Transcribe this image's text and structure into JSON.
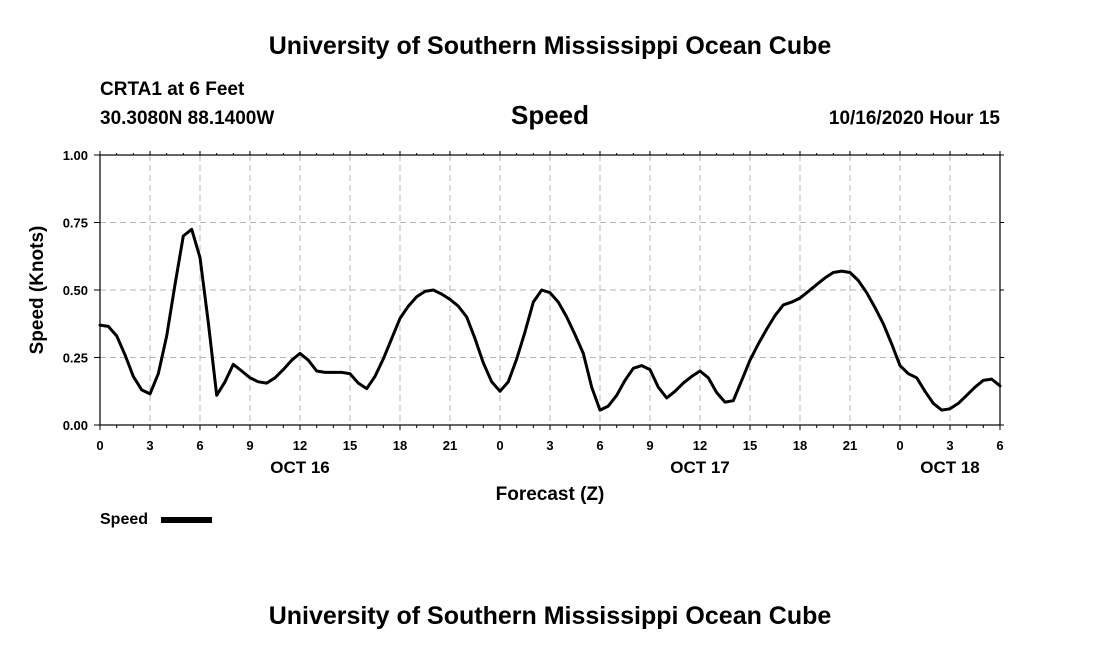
{
  "header": {
    "title_top": "University of Southern Mississippi Ocean Cube",
    "station": "CRTA1 at 6 Feet",
    "location": "30.3080N 88.1400W",
    "variable": "Speed",
    "issued": "10/16/2020 Hour 15",
    "title_bottom": "University of Southern Mississippi Ocean Cube"
  },
  "legend": {
    "label": "Speed"
  },
  "chart_data": {
    "type": "line",
    "title": "Speed",
    "xlabel": "Forecast (Z)",
    "ylabel": "Speed (Knots)",
    "xlim": [
      0,
      54
    ],
    "ylim": [
      0,
      1
    ],
    "grid": true,
    "x_tick_values": [
      0,
      3,
      6,
      9,
      12,
      15,
      18,
      21,
      24,
      27,
      30,
      33,
      36,
      39,
      42,
      45,
      48,
      51,
      54
    ],
    "x_tick_labels": [
      "0",
      "3",
      "6",
      "9",
      "12",
      "15",
      "18",
      "21",
      "0",
      "3",
      "6",
      "9",
      "12",
      "15",
      "18",
      "21",
      "0",
      "3",
      "6"
    ],
    "y_tick_values": [
      0,
      0.25,
      0.5,
      0.75,
      1.0
    ],
    "y_tick_labels": [
      "0.00",
      "0.25",
      "0.50",
      "0.75",
      "1.00"
    ],
    "day_labels": [
      {
        "x": 12,
        "label": "OCT 16"
      },
      {
        "x": 36,
        "label": "OCT 17"
      },
      {
        "x": 51,
        "label": "OCT 18"
      }
    ],
    "series": [
      {
        "name": "Speed",
        "color": "#000000",
        "x": [
          0,
          0.5,
          1,
          1.5,
          2,
          2.5,
          3,
          3.5,
          4,
          4.5,
          5,
          5.5,
          6,
          6.5,
          7,
          7.5,
          8,
          8.5,
          9,
          9.5,
          10,
          10.5,
          11,
          11.5,
          12,
          12.5,
          13,
          13.5,
          14,
          14.5,
          15,
          15.5,
          16,
          16.5,
          17,
          17.5,
          18,
          18.5,
          19,
          19.5,
          20,
          20.5,
          21,
          21.5,
          22,
          22.5,
          23,
          23.5,
          24,
          24.5,
          25,
          25.5,
          26,
          26.5,
          27,
          27.5,
          28,
          28.5,
          29,
          29.5,
          30,
          30.5,
          31,
          31.5,
          32,
          32.5,
          33,
          33.5,
          34,
          34.5,
          35,
          35.5,
          36,
          36.5,
          37,
          37.5,
          38,
          38.5,
          39,
          39.5,
          40,
          40.5,
          41,
          41.5,
          42,
          42.5,
          43,
          43.5,
          44,
          44.5,
          45,
          45.5,
          46,
          46.5,
          47,
          47.5,
          48,
          48.5,
          49,
          49.5,
          50,
          50.5,
          51,
          51.5,
          52,
          52.5,
          53,
          53.5,
          54
        ],
        "values": [
          0.37,
          0.365,
          0.33,
          0.26,
          0.18,
          0.13,
          0.115,
          0.19,
          0.33,
          0.52,
          0.7,
          0.725,
          0.62,
          0.38,
          0.11,
          0.16,
          0.225,
          0.2,
          0.175,
          0.16,
          0.155,
          0.175,
          0.205,
          0.24,
          0.265,
          0.24,
          0.2,
          0.195,
          0.195,
          0.195,
          0.19,
          0.155,
          0.135,
          0.18,
          0.245,
          0.32,
          0.395,
          0.44,
          0.475,
          0.495,
          0.5,
          0.485,
          0.465,
          0.44,
          0.4,
          0.32,
          0.23,
          0.16,
          0.125,
          0.16,
          0.245,
          0.345,
          0.455,
          0.5,
          0.49,
          0.455,
          0.4,
          0.335,
          0.265,
          0.14,
          0.055,
          0.07,
          0.11,
          0.165,
          0.21,
          0.22,
          0.205,
          0.14,
          0.1,
          0.125,
          0.155,
          0.18,
          0.2,
          0.175,
          0.12,
          0.085,
          0.09,
          0.165,
          0.24,
          0.3,
          0.355,
          0.405,
          0.445,
          0.455,
          0.47,
          0.495,
          0.52,
          0.545,
          0.565,
          0.57,
          0.565,
          0.535,
          0.49,
          0.435,
          0.375,
          0.3,
          0.22,
          0.19,
          0.175,
          0.125,
          0.08,
          0.055,
          0.06,
          0.08,
          0.11,
          0.14,
          0.165,
          0.17,
          0.145
        ]
      }
    ]
  }
}
